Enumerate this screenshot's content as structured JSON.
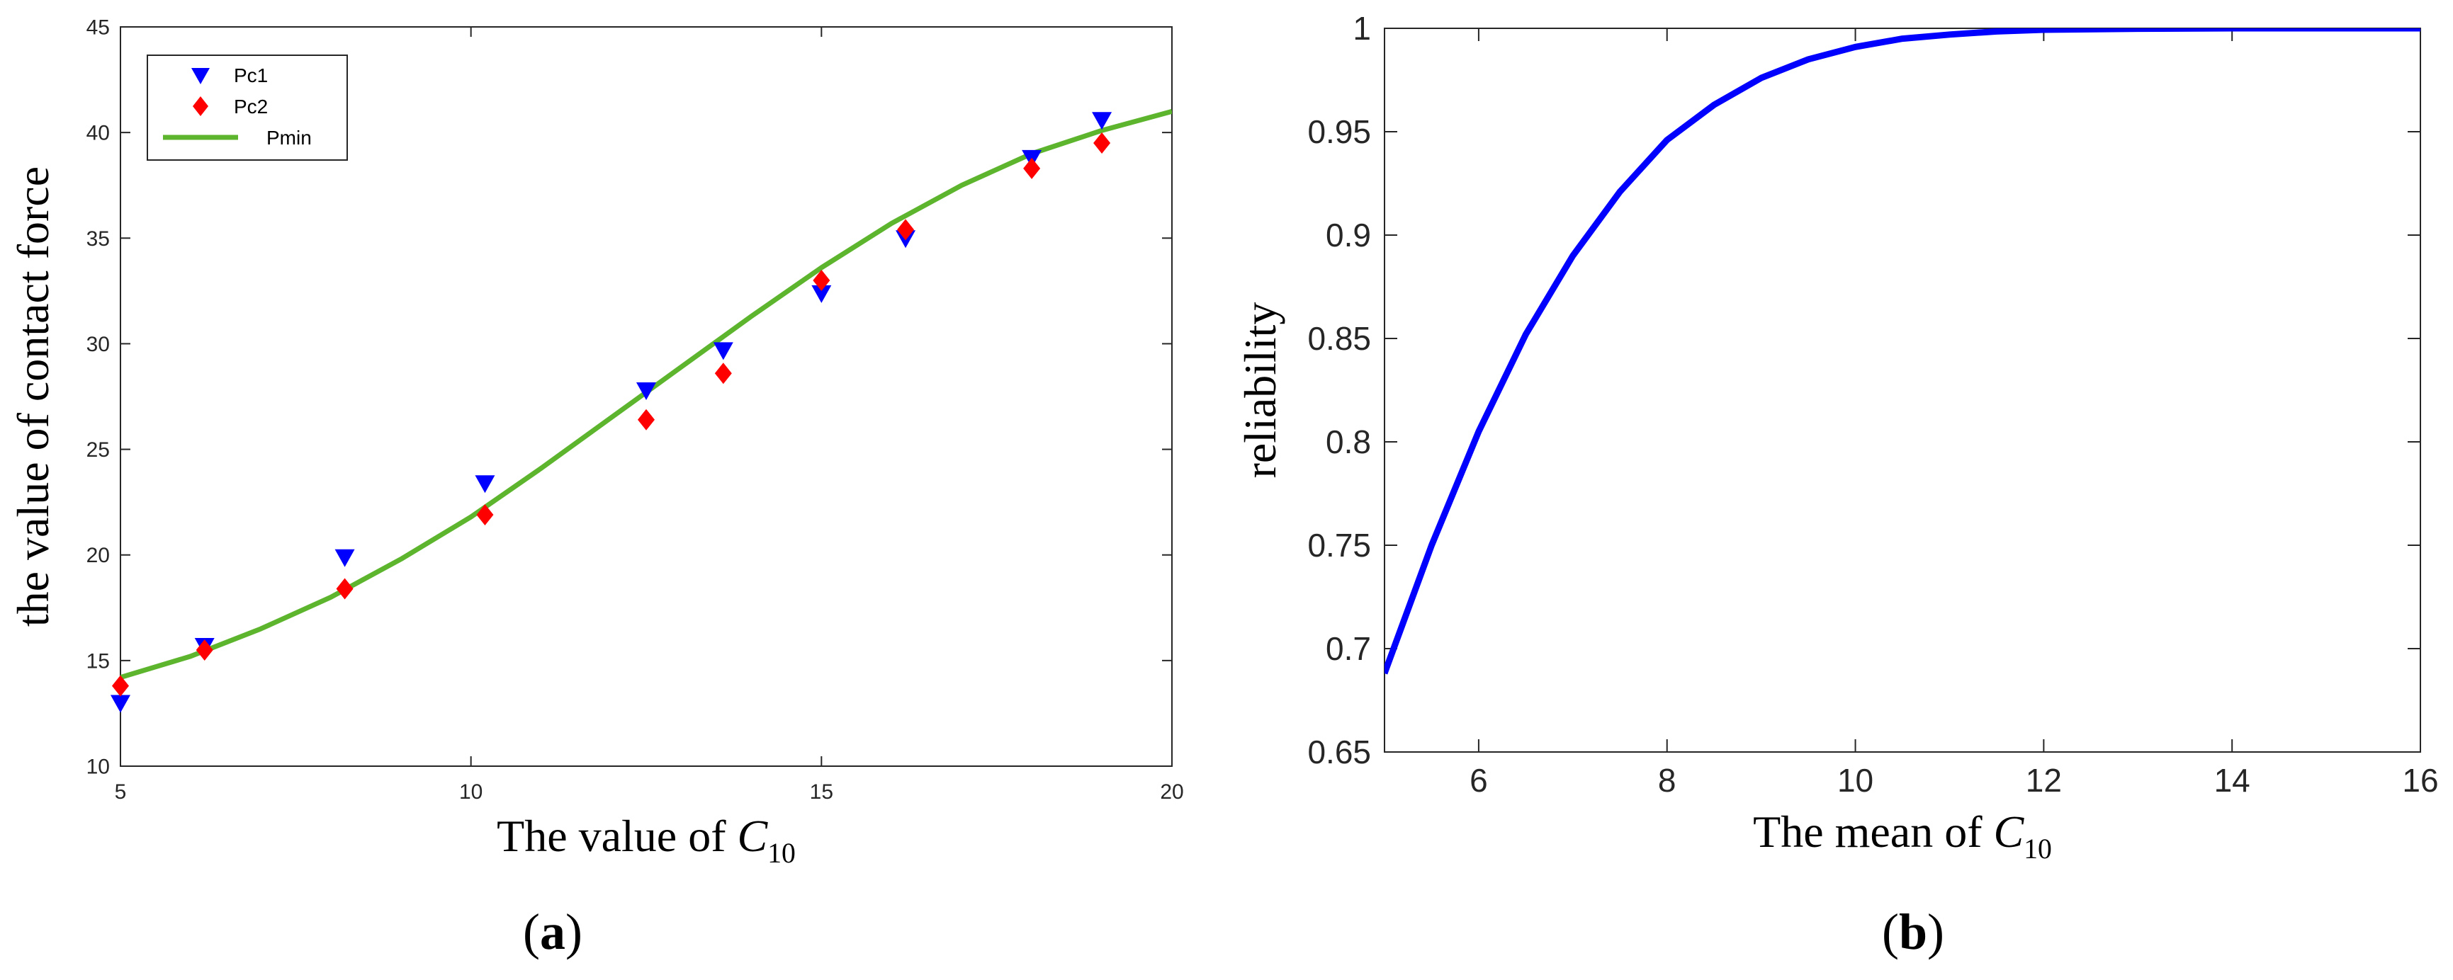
{
  "chart_data": [
    {
      "type": "scatter",
      "panel_label": "a",
      "xlabel_prefix": "The value of ",
      "xlabel_var": "C",
      "xlabel_sub": "10",
      "ylabel": "the value of contact force",
      "xlim": [
        5,
        20
      ],
      "ylim": [
        10,
        45
      ],
      "xticks": [
        5,
        10,
        15,
        20
      ],
      "yticks": [
        10,
        15,
        20,
        25,
        30,
        35,
        40,
        45
      ],
      "grid": false,
      "legend_position": "top-left",
      "series": [
        {
          "name": "Pc1",
          "marker": "triangle-down",
          "color": "#0000ff",
          "x": [
            5.0,
            6.2,
            8.2,
            10.2,
            12.5,
            13.6,
            15.0,
            16.2,
            18.0,
            19.0
          ],
          "y": [
            13.0,
            15.7,
            19.9,
            23.4,
            27.8,
            29.7,
            32.4,
            35.0,
            38.8,
            40.6
          ]
        },
        {
          "name": "Pc2",
          "marker": "diamond",
          "color": "#ff0000",
          "x": [
            5.0,
            6.2,
            8.2,
            10.2,
            12.5,
            13.6,
            15.0,
            16.2,
            18.0,
            19.0
          ],
          "y": [
            13.8,
            15.5,
            18.4,
            21.9,
            26.4,
            28.6,
            33.0,
            35.4,
            38.3,
            39.5
          ]
        },
        {
          "name": "Pmin",
          "marker": "line",
          "color": "#5db52e",
          "x": [
            5,
            6,
            7,
            8,
            9,
            10,
            11,
            12,
            13,
            14,
            15,
            16,
            17,
            18,
            19,
            20
          ],
          "y": [
            14.2,
            15.2,
            16.5,
            18.0,
            19.8,
            21.8,
            24.1,
            26.5,
            28.9,
            31.3,
            33.6,
            35.7,
            37.5,
            39.0,
            40.1,
            41.0
          ]
        }
      ]
    },
    {
      "type": "line",
      "panel_label": "b",
      "xlabel_prefix": "The mean of ",
      "xlabel_var": "C",
      "xlabel_sub": "10",
      "ylabel": "reliability",
      "xlim": [
        5,
        16
      ],
      "ylim": [
        0.65,
        1.0
      ],
      "xticks": [
        6,
        8,
        10,
        12,
        14,
        16
      ],
      "yticks": [
        0.65,
        0.7,
        0.75,
        0.8,
        0.85,
        0.9,
        0.95,
        1
      ],
      "ytick_labels": [
        "0.65",
        "0.7",
        "0.75",
        "0.8",
        "0.85",
        "0.9",
        "0.95",
        "1"
      ],
      "grid": false,
      "series": [
        {
          "color": "#0000ff",
          "x": [
            5.0,
            5.5,
            6.0,
            6.5,
            7.0,
            7.5,
            8.0,
            8.5,
            9.0,
            9.5,
            10.0,
            10.5,
            11.0,
            11.5,
            12.0,
            13.0,
            14.0,
            15.0,
            16.0
          ],
          "y": [
            0.688,
            0.75,
            0.805,
            0.852,
            0.89,
            0.921,
            0.946,
            0.963,
            0.976,
            0.985,
            0.991,
            0.995,
            0.997,
            0.9985,
            0.9993,
            0.9998,
            1.0,
            1.0,
            1.0
          ]
        }
      ]
    }
  ]
}
